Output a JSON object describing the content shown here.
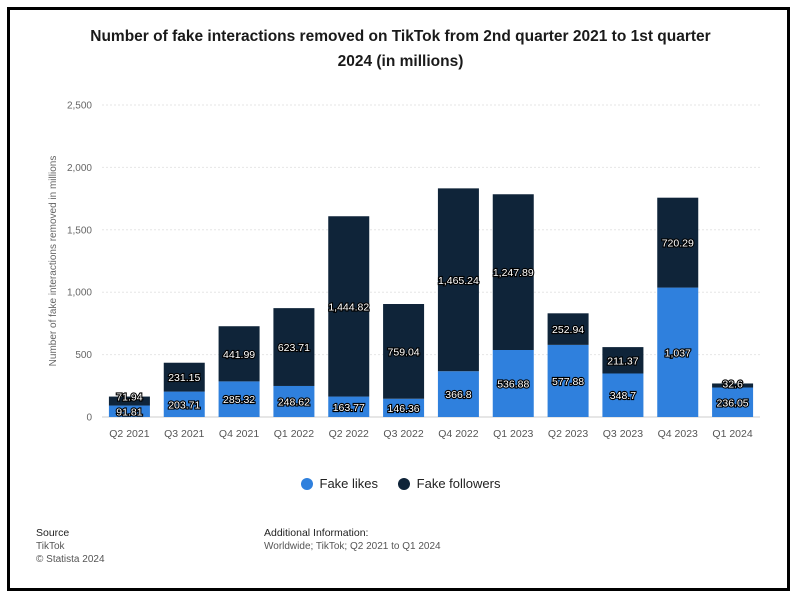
{
  "title_line1": "Number of fake interactions removed on TikTok from 2nd quarter 2021 to 1st quarter",
  "title_line2": "2024 (in millions)",
  "colors": {
    "likes": "#2f80dd",
    "followers": "#0f2439",
    "grid": "#e6e6e6"
  },
  "chart_data": {
    "type": "bar",
    "stacked": true,
    "title": "Number of fake interactions removed on TikTok from 2nd quarter 2021 to 1st quarter 2024 (in millions)",
    "ylabel": "Number of fake interactions removed in millions",
    "xlabel": "",
    "ylim": [
      0,
      2500
    ],
    "yticks": [
      0,
      500,
      1000,
      1500,
      2000,
      2500
    ],
    "ytick_labels": [
      "0",
      "500",
      "1,000",
      "1,500",
      "2,000",
      "2,500"
    ],
    "grid": true,
    "legend": "bottom",
    "categories": [
      "Q2 2021",
      "Q3 2021",
      "Q4 2021",
      "Q1 2022",
      "Q2 2022",
      "Q3 2022",
      "Q4 2022",
      "Q1 2023",
      "Q2 2023",
      "Q3 2023",
      "Q4 2023",
      "Q1 2024"
    ],
    "series": [
      {
        "name": "Fake likes",
        "color": "#2f80dd",
        "values": [
          91.81,
          203.71,
          285.32,
          248.62,
          163.77,
          146.36,
          366.8,
          536.88,
          577.88,
          348.7,
          1037,
          236.05
        ],
        "labels": [
          "91.81",
          "203.71",
          "285.32",
          "248.62",
          "163.77",
          "146.36",
          "366.8",
          "536.88",
          "577.88",
          "348.7",
          "1,037",
          "236.05"
        ]
      },
      {
        "name": "Fake followers",
        "color": "#0f2439",
        "values": [
          71.94,
          231.15,
          441.99,
          623.71,
          1444.82,
          759.04,
          1465.24,
          1247.89,
          252.94,
          211.37,
          720.29,
          32.6
        ],
        "labels": [
          "71.94",
          "231.15",
          "441.99",
          "623.71",
          "1,444.82",
          "759.04",
          "1,465.24",
          "1,247.89",
          "252.94",
          "211.37",
          "720.29",
          "32.6"
        ]
      }
    ]
  },
  "footer": {
    "source_label": "Source",
    "source_value": "TikTok",
    "copyright": "© Statista 2024",
    "additional_label": "Additional Information:",
    "additional_value": "Worldwide; TikTok; Q2 2021 to Q1 2024"
  }
}
